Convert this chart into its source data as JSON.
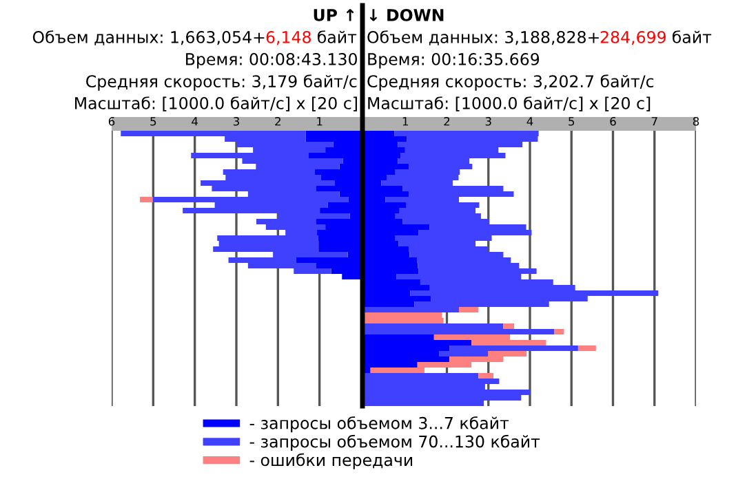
{
  "chart_data": [
    {
      "type": "bar",
      "orientation": "horizontal",
      "stacked": true,
      "title": "UP ↑",
      "legend": "bottom",
      "annotations": [
        "Объем данных: 1,663,054+6,148 байт",
        "Время: 00:08:43.130",
        "Средняя скорость: 3,179 байт/с",
        "Масштаб: [1000.0 байт/с] x [20 с]"
      ],
      "categories": [
        null,
        null,
        null,
        null,
        null,
        null,
        null,
        null,
        null,
        null,
        null,
        null,
        null,
        null,
        null,
        null,
        null,
        null,
        null,
        null,
        null,
        null,
        null,
        null,
        null,
        null,
        null,
        null,
        null,
        null,
        null,
        null,
        null,
        null,
        null,
        null,
        null,
        null,
        null,
        null,
        null,
        null,
        null,
        null,
        null,
        null,
        null,
        null,
        null,
        null
      ],
      "xlim": [
        6,
        0
      ],
      "xticks": [
        6,
        5,
        4,
        3,
        2,
        1
      ],
      "grid": "x",
      "series": [
        {
          "name": "- запросы объемом 3...7 кбайт",
          "color": "#0000ff",
          "values": [
            1.33,
            1.33,
            0.67,
            0.86,
            1.26,
            0.44,
            0.52,
            1.11,
            0.97,
            0.63,
            1.09,
            0.52,
            0.3,
            0.8,
            0.99,
            0.27,
            1.09,
            0.86,
            1.06,
            1.03,
            1.02,
            1.02,
            0.32,
            1.56,
            1.09,
            0.72,
            0.46,
            null,
            null,
            null,
            null,
            null,
            null,
            null,
            null,
            null,
            null,
            null,
            null,
            null,
            null,
            null,
            null,
            null,
            null,
            null,
            null,
            null,
            null,
            null
          ]
        },
        {
          "name": "- запросы объемом 70...130 кбайт",
          "color": "#4040ff",
          "values": [
            4.45,
            1.95,
            2.33,
            1.74,
            2.83,
            2.42,
            2.01,
            2.21,
            2.29,
            3.23,
            2.5,
            2.2,
            4.71,
            2.72,
            3.3,
            1.72,
            1.43,
            1.43,
            0.76,
            2.43,
            2.4,
            2.54,
            1.8,
            1.63,
            1.63,
            0.9,
            null,
            null,
            null,
            null,
            null,
            null,
            null,
            null,
            null,
            null,
            null,
            null,
            null,
            null,
            null,
            null,
            null,
            null,
            null,
            null,
            null,
            null,
            null,
            null
          ]
        },
        {
          "name": "- ошибки передачи",
          "color": "#ff8080",
          "values": [
            null,
            null,
            null,
            null,
            null,
            null,
            null,
            null,
            null,
            null,
            null,
            null,
            0.31,
            null,
            null,
            null,
            null,
            null,
            null,
            null,
            null,
            null,
            null,
            null,
            null,
            null,
            null,
            null,
            null,
            null,
            null,
            null,
            null,
            null,
            null,
            null,
            null,
            null,
            null,
            null,
            null,
            null,
            null,
            null,
            null,
            null,
            null,
            null,
            null,
            null
          ]
        }
      ]
    },
    {
      "type": "bar",
      "orientation": "horizontal",
      "stacked": true,
      "title": "↓ DOWN",
      "legend": "bottom",
      "annotations": [
        "Объем данных: 3,188,828+284,699 байт",
        "Время: 00:16:35.669",
        "Средняя скорость: 3,202.7 байт/с",
        "Масштаб: [1000.0 байт/с] x [20 с]"
      ],
      "categories": [
        null,
        null,
        null,
        null,
        null,
        null,
        null,
        null,
        null,
        null,
        null,
        null,
        null,
        null,
        null,
        null,
        null,
        null,
        null,
        null,
        null,
        null,
        null,
        null,
        null,
        null,
        null,
        null,
        null,
        null,
        null,
        null,
        null,
        null,
        null,
        null,
        null,
        null,
        null,
        null,
        null,
        null,
        null,
        null,
        null,
        null,
        null,
        null,
        null,
        null
      ],
      "xlim": [
        0,
        8
      ],
      "xticks": [
        1,
        2,
        3,
        4,
        5,
        6,
        7,
        8
      ],
      "grid": "x",
      "series": [
        {
          "name": "- запросы объемом 3...7 кбайт",
          "color": "#0000ff",
          "values": [
            0.74,
            1.04,
            0.82,
            0.99,
            0.89,
            0.82,
            1.09,
            0.76,
            0.56,
            0.42,
            0.94,
            1.09,
            0.52,
            1.02,
            0.86,
            0.76,
            0.94,
            1.58,
            1.32,
            0.76,
            0.84,
            1.08,
            1.1,
            1.28,
            1.3,
            1.32,
            0.79,
            1.36,
            1.59,
            1.12,
            1.62,
            1.22,
            null,
            null,
            null,
            null,
            null,
            1.69,
            2.59,
            2.06,
            1.82,
            2.06,
            1.29,
            0.16,
            null,
            null,
            null,
            null,
            null,
            null
          ]
        },
        {
          "name": "- запросы объемом 70...130 кбайт",
          "color": "#4040ff",
          "values": [
            3.47,
            3.15,
            3.0,
            2.25,
            2.52,
            1.72,
            1.52,
            1.55,
            1.72,
            1.72,
            2.42,
            2.52,
            1.77,
            1.76,
            1.83,
            2.06,
            2.08,
            2.33,
            2.72,
            2.32,
            1.85,
            1.91,
            2.26,
            2.26,
            2.44,
            2.84,
            3.0,
            3.2,
            3.5,
            5.97,
            3.77,
            3.24,
            2.29,
            null,
            null,
            3.36,
            4.59,
            null,
            null,
            3.1,
            1.17,
            null,
            null,
            null,
            2.76,
            3.26,
            2.92,
            4.01,
            3.79,
            2.89
          ]
        },
        {
          "name": "- ошибки передачи",
          "color": "#ff8080",
          "values": [
            null,
            null,
            null,
            null,
            null,
            null,
            null,
            null,
            null,
            null,
            null,
            null,
            null,
            null,
            null,
            null,
            null,
            null,
            null,
            null,
            null,
            null,
            null,
            null,
            null,
            null,
            null,
            null,
            null,
            null,
            null,
            null,
            0.47,
            1.88,
            1.92,
            0.26,
            0.23,
            1.83,
            1.8,
            0.43,
            0.93,
            1.3,
            1.3,
            1.3,
            0.36,
            null,
            null,
            null,
            null,
            null
          ]
        }
      ]
    }
  ]
}
